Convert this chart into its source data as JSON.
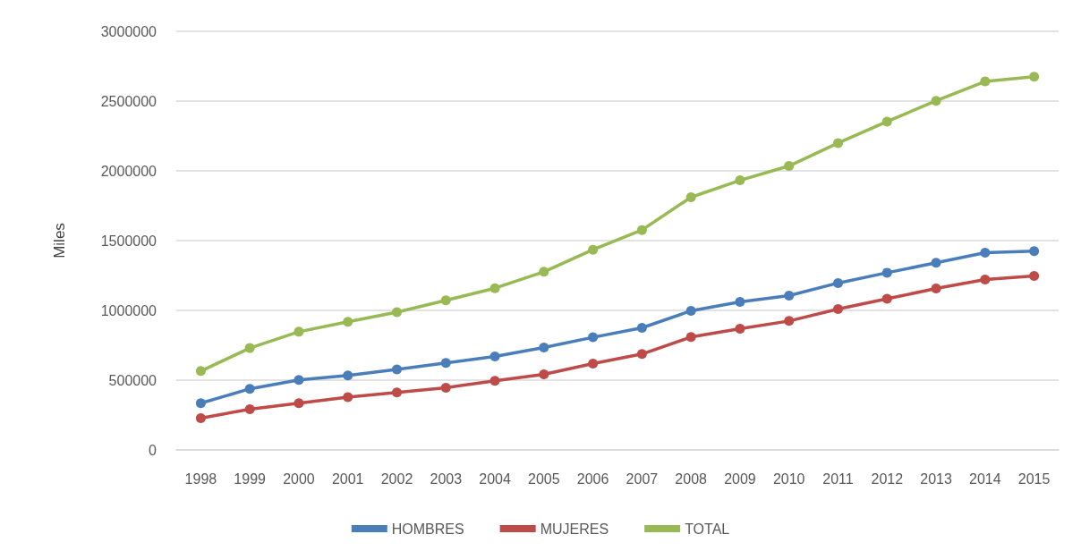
{
  "chart_data": {
    "type": "line",
    "ylabel": "Miles",
    "categories": [
      "1998",
      "1999",
      "2000",
      "2001",
      "2002",
      "2003",
      "2004",
      "2005",
      "2006",
      "2007",
      "2008",
      "2009",
      "2010",
      "2011",
      "2012",
      "2013",
      "2014",
      "2015"
    ],
    "series": [
      {
        "name": "HOMBRES",
        "color": "#4a7ebb",
        "values": [
          335000,
          438000,
          502000,
          534000,
          577000,
          623000,
          670000,
          734000,
          807000,
          875000,
          997000,
          1061000,
          1106000,
          1196000,
          1270000,
          1341000,
          1413000,
          1424000
        ]
      },
      {
        "name": "MUJERES",
        "color": "#be4b48",
        "values": [
          228000,
          292000,
          335000,
          378000,
          412000,
          446000,
          495000,
          542000,
          619000,
          687000,
          809000,
          869000,
          924000,
          1010000,
          1083000,
          1157000,
          1221000,
          1247000
        ]
      },
      {
        "name": "TOTAL",
        "color": "#98b954",
        "values": [
          565000,
          730000,
          847000,
          918000,
          987000,
          1072000,
          1159000,
          1277000,
          1435000,
          1576000,
          1811000,
          1932000,
          2035000,
          2199000,
          2353000,
          2502000,
          2641000,
          2675000
        ]
      }
    ],
    "ylim": [
      0,
      3000000
    ],
    "yticks": [
      0,
      500000,
      1000000,
      1500000,
      2000000,
      2500000,
      3000000
    ],
    "grid": "y",
    "legend": "bottom",
    "marker": "circle",
    "line_style": "solid"
  }
}
